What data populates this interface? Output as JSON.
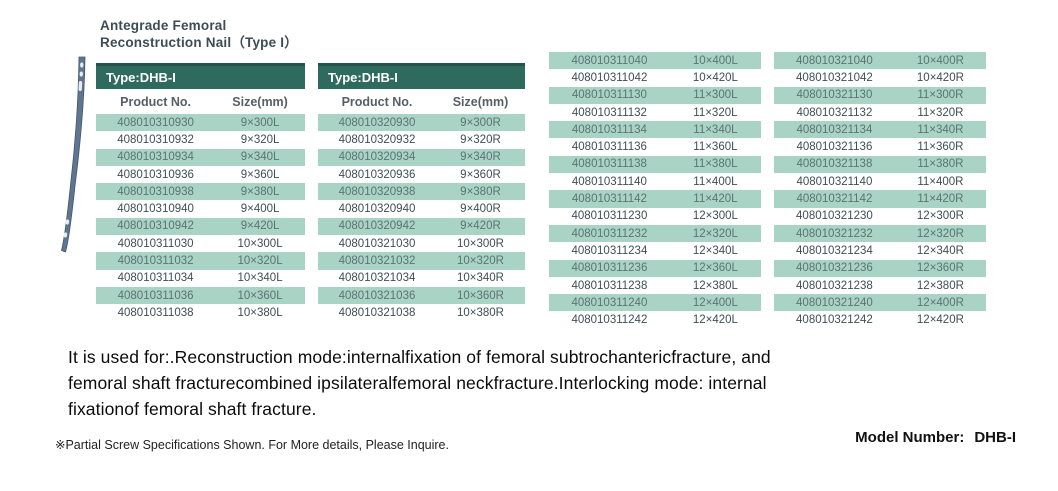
{
  "title": {
    "line1": "Antegrade Femoral",
    "line2": "Reconstruction Nail（Type I）"
  },
  "colors": {
    "teal": "#2F6A5E",
    "tealEdge": "#24544B",
    "rowShade": "#A9D3C5",
    "title": "#3D4C55",
    "rowText": "#3F4E54",
    "rowTextShaded": "#5C7472",
    "colHead": "#575F66"
  },
  "tables": [
    {
      "header": "Type:DHB-I",
      "columns": [
        "Product No.",
        "Size(mm)"
      ],
      "rows": [
        [
          "408010310930",
          "9×300L"
        ],
        [
          "408010310932",
          "9×320L"
        ],
        [
          "408010310934",
          "9×340L"
        ],
        [
          "408010310936",
          "9×360L"
        ],
        [
          "408010310938",
          "9×380L"
        ],
        [
          "408010310940",
          "9×400L"
        ],
        [
          "408010310942",
          "9×420L"
        ],
        [
          "408010311030",
          "10×300L"
        ],
        [
          "408010311032",
          "10×320L"
        ],
        [
          "408010311034",
          "10×340L"
        ],
        [
          "408010311036",
          "10×360L"
        ],
        [
          "408010311038",
          "10×380L"
        ]
      ]
    },
    {
      "header": "Type:DHB-I",
      "columns": [
        "Product No.",
        "Size(mm)"
      ],
      "rows": [
        [
          "408010320930",
          "9×300R"
        ],
        [
          "408010320932",
          "9×320R"
        ],
        [
          "408010320934",
          "9×340R"
        ],
        [
          "408010320936",
          "9×360R"
        ],
        [
          "408010320938",
          "9×380R"
        ],
        [
          "408010320940",
          "9×400R"
        ],
        [
          "408010320942",
          "9×420R"
        ],
        [
          "408010321030",
          "10×300R"
        ],
        [
          "408010321032",
          "10×320R"
        ],
        [
          "408010321034",
          "10×340R"
        ],
        [
          "408010321036",
          "10×360R"
        ],
        [
          "408010321038",
          "10×380R"
        ]
      ]
    },
    {
      "rows": [
        [
          "408010311040",
          "10×400L"
        ],
        [
          "408010311042",
          "10×420L"
        ],
        [
          "408010311130",
          "11×300L"
        ],
        [
          "408010311132",
          "11×320L"
        ],
        [
          "408010311134",
          "11×340L"
        ],
        [
          "408010311136",
          "11×360L"
        ],
        [
          "408010311138",
          "11×380L"
        ],
        [
          "408010311140",
          "11×400L"
        ],
        [
          "408010311142",
          "11×420L"
        ],
        [
          "408010311230",
          "12×300L"
        ],
        [
          "408010311232",
          "12×320L"
        ],
        [
          "408010311234",
          "12×340L"
        ],
        [
          "408010311236",
          "12×360L"
        ],
        [
          "408010311238",
          "12×380L"
        ],
        [
          "408010311240",
          "12×400L"
        ],
        [
          "408010311242",
          "12×420L"
        ]
      ]
    },
    {
      "rows": [
        [
          "408010321040",
          "10×400R"
        ],
        [
          "408010321042",
          "10×420R"
        ],
        [
          "408010321130",
          "11×300R"
        ],
        [
          "408010321132",
          "11×320R"
        ],
        [
          "408010321134",
          "11×340R"
        ],
        [
          "408010321136",
          "11×360R"
        ],
        [
          "408010321138",
          "11×380R"
        ],
        [
          "408010321140",
          "11×400R"
        ],
        [
          "408010321142",
          "11×420R"
        ],
        [
          "408010321230",
          "12×300R"
        ],
        [
          "408010321232",
          "12×320R"
        ],
        [
          "408010321234",
          "12×340R"
        ],
        [
          "408010321236",
          "12×360R"
        ],
        [
          "408010321238",
          "12×380R"
        ],
        [
          "408010321240",
          "12×400R"
        ],
        [
          "408010321242",
          "12×420R"
        ]
      ]
    }
  ],
  "description": {
    "line1": "It is used for:.Reconstruction mode:internalfixation of femoral subtrochantericfracture, and",
    "line2": "femoral shaft fracturecombined ipsilateralfemoral neckfracture.Interlocking mode: internal",
    "line3": "fixationof femoral shaft fracture."
  },
  "footnote": "※Partial Screw Specifications Shown. For More  details, Please Inquire.",
  "model": {
    "label": "Model  Number:",
    "value": "DHB-I"
  }
}
